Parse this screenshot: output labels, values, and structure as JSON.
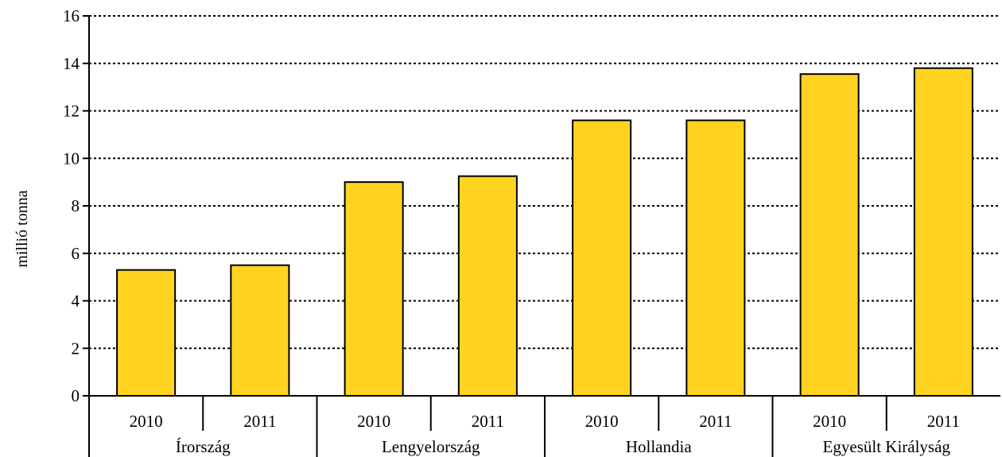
{
  "chart_data": {
    "type": "bar",
    "title": "",
    "xlabel": "",
    "ylabel": "millió tonna",
    "ylim": [
      0,
      16
    ],
    "yticks": [
      "0",
      "2",
      "4",
      "6",
      "8",
      "10",
      "12",
      "14",
      "16"
    ],
    "grid": true,
    "bar_color": "#FFD320",
    "groups": [
      {
        "name": "Írország",
        "bars": [
          {
            "category": "2010",
            "value": 5.3
          },
          {
            "category": "2011",
            "value": 5.5
          }
        ]
      },
      {
        "name": "Lengyelország",
        "bars": [
          {
            "category": "2010",
            "value": 9.0
          },
          {
            "category": "2011",
            "value": 9.25
          }
        ]
      },
      {
        "name": "Hollandia",
        "bars": [
          {
            "category": "2010",
            "value": 11.6
          },
          {
            "category": "2011",
            "value": 11.6
          }
        ]
      },
      {
        "name": "Egyesült Királyság",
        "bars": [
          {
            "category": "2010",
            "value": 13.55
          },
          {
            "category": "2011",
            "value": 13.8
          }
        ]
      }
    ]
  }
}
